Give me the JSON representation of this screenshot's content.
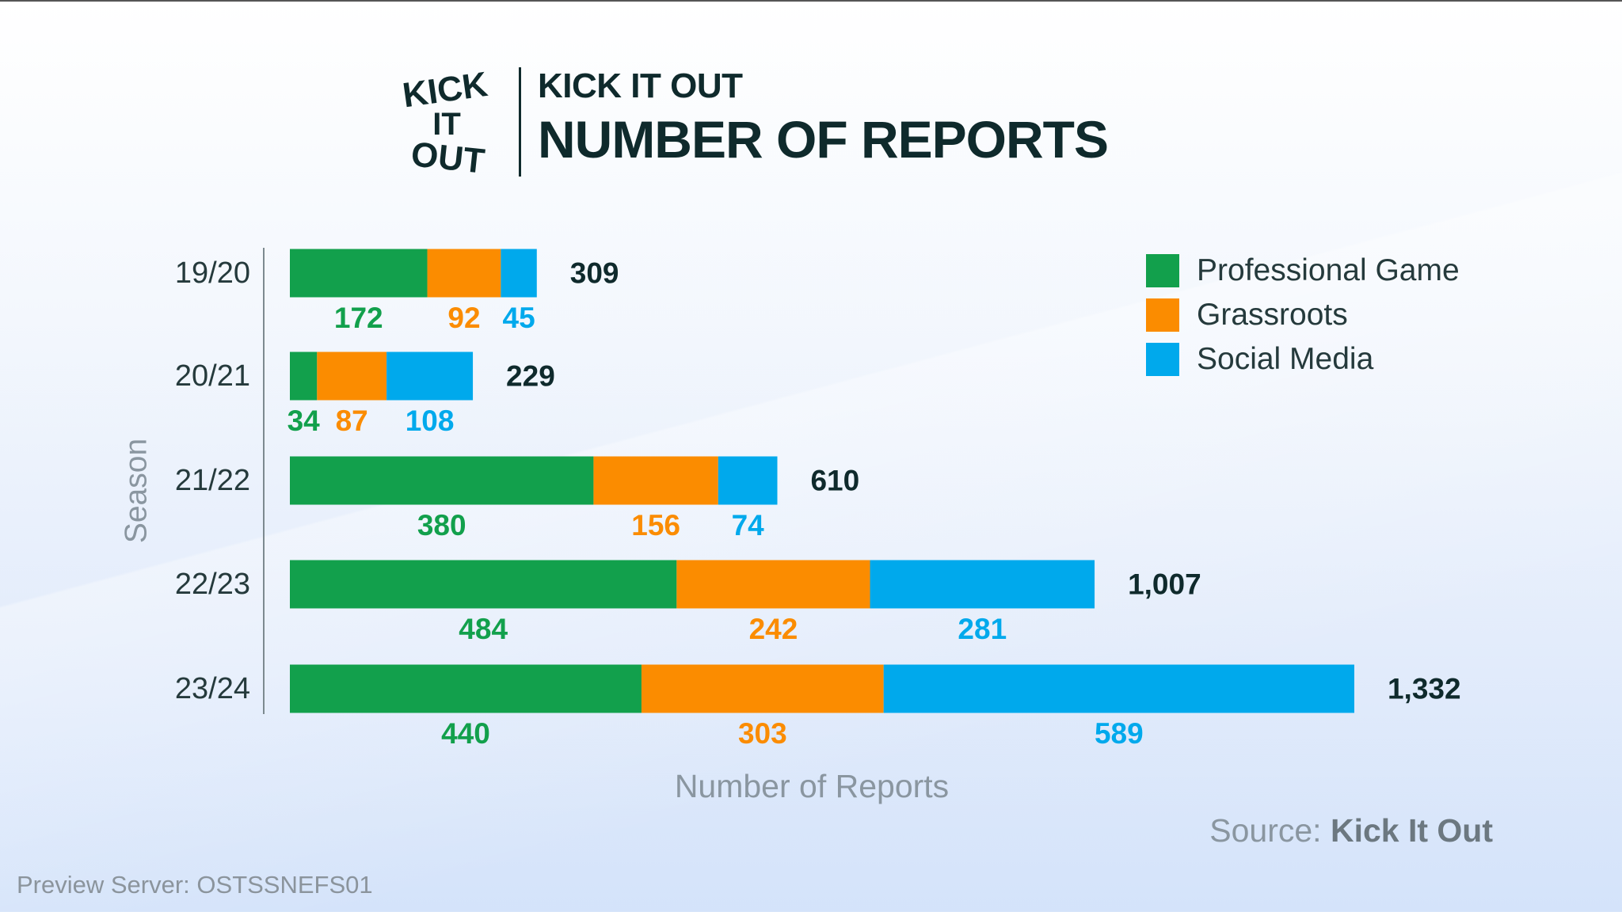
{
  "header": {
    "logo_text": "KICK IT OUT",
    "subtitle": "KICK IT OUT",
    "title": "NUMBER OF REPORTS"
  },
  "colors": {
    "professional": "#12a04c",
    "grassroots": "#fb8c00",
    "social": "#00a9ec",
    "text": "#0f2a2c"
  },
  "chart_data": {
    "type": "bar",
    "orientation": "horizontal",
    "stacked": true,
    "title": "NUMBER OF REPORTS",
    "xlabel": "Number of Reports",
    "ylabel": "Season",
    "categories": [
      "19/20",
      "20/21",
      "21/22",
      "22/23",
      "23/24"
    ],
    "series": [
      {
        "name": "Professional Game",
        "values": [
          172,
          34,
          380,
          484,
          440
        ]
      },
      {
        "name": "Grassroots",
        "values": [
          92,
          87,
          156,
          242,
          303
        ]
      },
      {
        "name": "Social Media",
        "values": [
          45,
          108,
          74,
          281,
          589
        ]
      }
    ],
    "totals": [
      "309",
      "229",
      "610",
      "1,007",
      "1,332"
    ],
    "legend": "top-right",
    "grid": false
  },
  "footer": {
    "source_label": "Source:",
    "source_value": "Kick It Out",
    "preview": "Preview Server: OSTSSNEFS01"
  }
}
